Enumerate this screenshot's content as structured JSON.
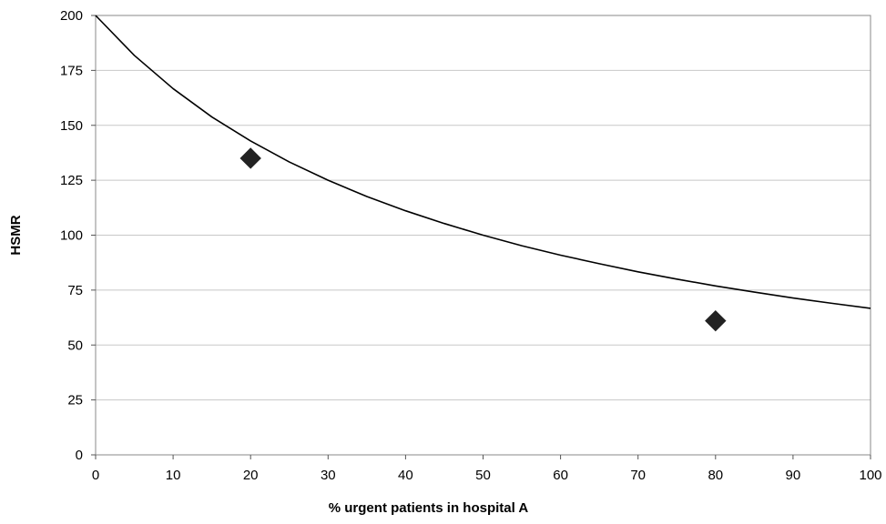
{
  "chart_data": {
    "type": "line",
    "title": "",
    "xlabel": "% urgent patients in hospital A",
    "ylabel": "HSMR",
    "xlim": [
      0,
      100
    ],
    "ylim": [
      0,
      200
    ],
    "x_ticks": [
      0,
      10,
      20,
      30,
      40,
      50,
      60,
      70,
      80,
      90,
      100
    ],
    "y_ticks": [
      0,
      25,
      50,
      75,
      100,
      125,
      150,
      175,
      200
    ],
    "grid": "horizontal",
    "legend": "none",
    "series": [
      {
        "kind": "line",
        "color": "#000000",
        "x": [
          0,
          5,
          10,
          15,
          20,
          25,
          30,
          35,
          40,
          45,
          50,
          55,
          60,
          65,
          70,
          75,
          80,
          85,
          90,
          95,
          100
        ],
        "y": [
          200,
          181.8,
          166.7,
          153.8,
          142.9,
          133.3,
          125.0,
          117.6,
          111.1,
          105.3,
          100.0,
          95.2,
          90.9,
          87.0,
          83.3,
          80.0,
          76.9,
          74.1,
          71.4,
          69.0,
          66.7
        ]
      },
      {
        "kind": "scatter",
        "marker": "diamond",
        "color": "#222222",
        "x": [
          20,
          80
        ],
        "y": [
          135,
          61
        ]
      }
    ]
  }
}
